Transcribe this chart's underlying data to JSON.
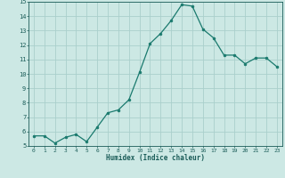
{
  "x": [
    0,
    1,
    2,
    3,
    4,
    5,
    6,
    7,
    8,
    9,
    10,
    11,
    12,
    13,
    14,
    15,
    16,
    17,
    18,
    19,
    20,
    21,
    22,
    23
  ],
  "y": [
    5.7,
    5.7,
    5.2,
    5.6,
    5.8,
    5.3,
    6.3,
    7.3,
    7.5,
    8.2,
    10.1,
    12.1,
    12.8,
    13.7,
    14.8,
    14.7,
    13.1,
    12.5,
    11.3,
    11.3,
    10.7,
    11.1,
    11.1,
    10.5
  ],
  "title": "",
  "xlabel": "Humidex (Indice chaleur)",
  "ylabel": "",
  "xlim": [
    -0.5,
    23.5
  ],
  "ylim": [
    5,
    15
  ],
  "yticks": [
    5,
    6,
    7,
    8,
    9,
    10,
    11,
    12,
    13,
    14,
    15
  ],
  "xticks": [
    0,
    1,
    2,
    3,
    4,
    5,
    6,
    7,
    8,
    9,
    10,
    11,
    12,
    13,
    14,
    15,
    16,
    17,
    18,
    19,
    20,
    21,
    22,
    23
  ],
  "line_color": "#1a7a6e",
  "marker_color": "#1a7a6e",
  "bg_color": "#cce8e4",
  "grid_color": "#aacfcc",
  "label_color": "#1a5c58",
  "tick_color": "#1a5c58"
}
